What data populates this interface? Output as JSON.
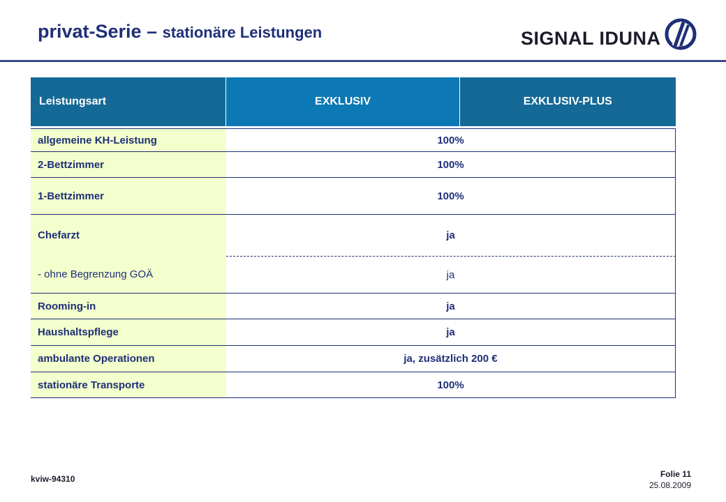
{
  "header": {
    "title_main": "privat-Serie – ",
    "title_sub": "stationäre Leistungen",
    "brand": "SIGNAL IDUNA",
    "brand_color": "#1f2f78",
    "logo_icon": "signal-iduna-logo-icon"
  },
  "table": {
    "columns": [
      "Leistungsart",
      "EXKLUSIV",
      "EXKLUSIV-PLUS"
    ],
    "rows": [
      {
        "label": "allgemeine KH-Leistung",
        "value": "100%"
      },
      {
        "label": "2-Bettzimmer",
        "value": "100%"
      },
      {
        "label": "1-Bettzimmer",
        "value": "100%"
      },
      {
        "label": "Chefarzt",
        "value": "ja"
      },
      {
        "label": "- ohne Begrenzung GOÄ",
        "value": "ja"
      },
      {
        "label": "Rooming-in",
        "value": "ja"
      },
      {
        "label": "Haushaltspflege",
        "value": "ja"
      },
      {
        "label": "ambulante Operationen",
        "value": "ja, zusätzlich 200 €"
      },
      {
        "label": "stationäre Transporte",
        "value": "100%"
      }
    ]
  },
  "footer": {
    "doc_id": "kviw-94310",
    "slide": "Folie 11",
    "date": "25.08.2009"
  }
}
